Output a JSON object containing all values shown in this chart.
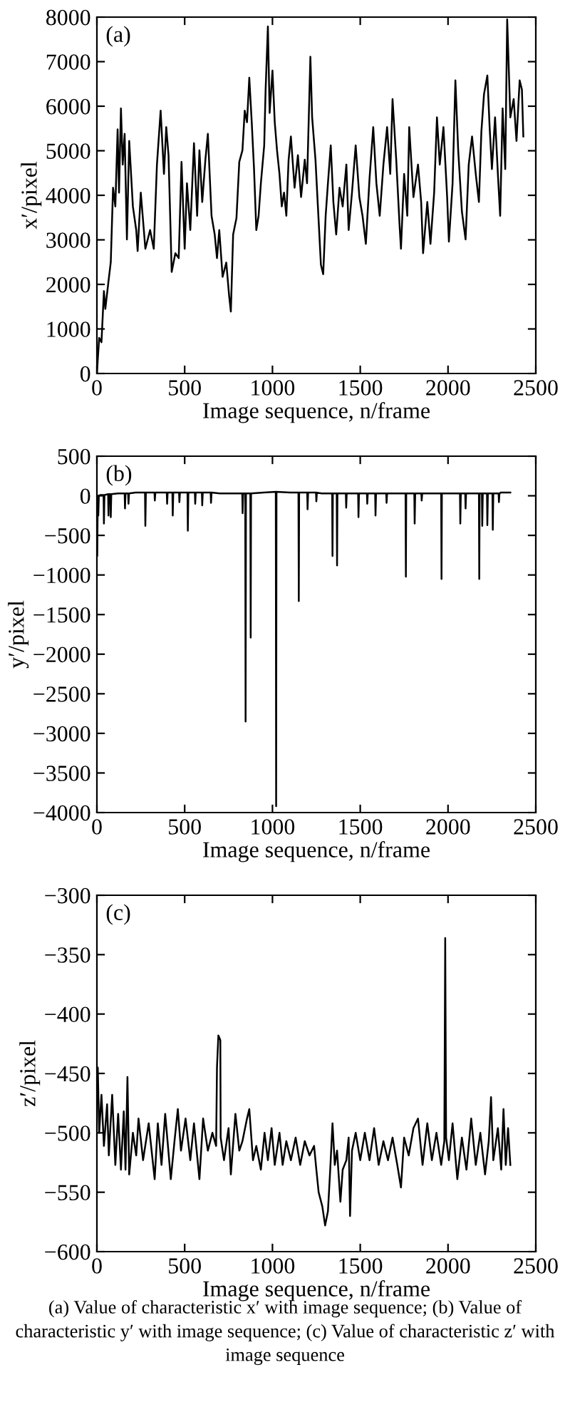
{
  "chart_data": [
    {
      "type": "line",
      "title": "(a)",
      "xlabel": "Image sequence, n/frame",
      "ylabel": "x′/pixel",
      "x": [
        0,
        13,
        26,
        40,
        48,
        66,
        79,
        92,
        105,
        118,
        126,
        137,
        147,
        158,
        171,
        184,
        205,
        224,
        232,
        250,
        276,
        303,
        324,
        342,
        363,
        382,
        395,
        408,
        426,
        447,
        466,
        482,
        500,
        513,
        532,
        553,
        571,
        584,
        600,
        618,
        632,
        653,
        671,
        684,
        697,
        716,
        737,
        753,
        763,
        776,
        795,
        811,
        829,
        842,
        855,
        868,
        882,
        895,
        908,
        921,
        934,
        953,
        961,
        974,
        984,
        1000,
        1013,
        1026,
        1040,
        1053,
        1066,
        1079,
        1092,
        1105,
        1126,
        1145,
        1163,
        1184,
        1197,
        1216,
        1226,
        1245,
        1263,
        1276,
        1289,
        1303,
        1316,
        1332,
        1347,
        1363,
        1382,
        1400,
        1421,
        1434,
        1453,
        1474,
        1495,
        1513,
        1532,
        1553,
        1574,
        1592,
        1611,
        1632,
        1653,
        1671,
        1684,
        1705,
        1724,
        1732,
        1750,
        1768,
        1779,
        1803,
        1829,
        1847,
        1858,
        1882,
        1900,
        1921,
        1937,
        1953,
        1974,
        1995,
        2005,
        2026,
        2042,
        2058,
        2079,
        2100,
        2118,
        2137,
        2158,
        2176,
        2190,
        2205,
        2224,
        2237,
        2250,
        2268,
        2284,
        2297,
        2311,
        2326,
        2337,
        2355,
        2374,
        2390,
        2408,
        2421,
        2429
      ],
      "series": [
        {
          "color": "#000000",
          "values": [
            0,
            800,
            700,
            1850,
            1450,
            2070,
            2500,
            4170,
            3750,
            5480,
            4060,
            5950,
            4690,
            5380,
            3010,
            5220,
            3750,
            3220,
            2750,
            4060,
            2800,
            3220,
            2800,
            4690,
            5900,
            4480,
            5530,
            4900,
            2280,
            2700,
            2590,
            4750,
            2800,
            4270,
            3220,
            5170,
            3540,
            5010,
            3850,
            4800,
            5380,
            3540,
            3120,
            2590,
            3220,
            2170,
            2490,
            1750,
            1390,
            3120,
            3490,
            4750,
            5010,
            5900,
            5640,
            6640,
            5640,
            4590,
            3220,
            3540,
            4270,
            5120,
            6370,
            7790,
            5850,
            6800,
            5640,
            5010,
            4480,
            3750,
            4060,
            3540,
            4800,
            5320,
            4170,
            4900,
            3960,
            4800,
            4270,
            7110,
            5750,
            4800,
            3430,
            2440,
            2230,
            3540,
            4270,
            5120,
            3850,
            3120,
            4170,
            3750,
            4690,
            3220,
            4060,
            5120,
            3960,
            3540,
            2910,
            4380,
            5530,
            4270,
            3540,
            4690,
            5530,
            4480,
            6160,
            4800,
            3330,
            2800,
            4480,
            3540,
            5530,
            3960,
            4690,
            3850,
            2700,
            3850,
            2910,
            4060,
            5750,
            4690,
            5530,
            3960,
            2960,
            4270,
            6580,
            5010,
            3640,
            3010,
            4690,
            5320,
            4480,
            3850,
            5430,
            6270,
            6690,
            5530,
            4590,
            5750,
            4480,
            3540,
            5950,
            4590,
            7950,
            5750,
            6160,
            5220,
            6580,
            6370,
            5320
          ]
        }
      ],
      "xlim": [
        0,
        2500
      ],
      "xticks": [
        0,
        500,
        1000,
        1500,
        2000,
        2500
      ],
      "ylim": [
        0,
        8000
      ],
      "yticks": [
        0,
        1000,
        2000,
        3000,
        4000,
        5000,
        6000,
        7000,
        8000
      ]
    },
    {
      "type": "line",
      "title": "(b)",
      "xlabel": "Image sequence, n/frame",
      "ylabel": "y′/pixel",
      "x": [
        0,
        2,
        5,
        8,
        11,
        20,
        38,
        40,
        43,
        64,
        66,
        69,
        77,
        79,
        82,
        120,
        158,
        160,
        163,
        178,
        180,
        183,
        220,
        274,
        276,
        279,
        328,
        330,
        333,
        398,
        400,
        403,
        430,
        432,
        435,
        468,
        470,
        473,
        516,
        518,
        521,
        558,
        560,
        563,
        598,
        600,
        603,
        648,
        650,
        653,
        700,
        760,
        828,
        830,
        833,
        845,
        847,
        849,
        874,
        876,
        878,
        950,
        1019,
        1021,
        1023,
        1100,
        1148,
        1150,
        1152,
        1198,
        1200,
        1203,
        1248,
        1250,
        1253,
        1280,
        1340,
        1342,
        1344,
        1366,
        1368,
        1370,
        1418,
        1420,
        1423,
        1488,
        1490,
        1493,
        1538,
        1540,
        1543,
        1585,
        1587,
        1590,
        1648,
        1650,
        1653,
        1680,
        1758,
        1760,
        1762,
        1808,
        1810,
        1813,
        1848,
        1850,
        1853,
        1900,
        1961,
        1963,
        1965,
        2020,
        2068,
        2070,
        2073,
        2098,
        2100,
        2103,
        2120,
        2176,
        2178,
        2180,
        2193,
        2195,
        2198,
        2222,
        2224,
        2227,
        2253,
        2255,
        2258,
        2288,
        2290,
        2293,
        2300,
        2355
      ],
      "series": [
        {
          "color": "#000000",
          "values": [
            0,
            -760,
            -20,
            -250,
            0,
            10,
            10,
            -350,
            10,
            20,
            -250,
            20,
            20,
            -270,
            20,
            30,
            30,
            -160,
            30,
            30,
            -100,
            30,
            40,
            40,
            -380,
            40,
            40,
            -60,
            40,
            40,
            -100,
            40,
            40,
            -250,
            40,
            40,
            -80,
            40,
            40,
            -440,
            40,
            40,
            -100,
            40,
            40,
            -120,
            40,
            40,
            -90,
            40,
            30,
            30,
            30,
            -220,
            30,
            30,
            -2850,
            30,
            30,
            -1790,
            30,
            40,
            50,
            -3920,
            50,
            40,
            40,
            -1330,
            40,
            40,
            -170,
            40,
            40,
            -70,
            40,
            30,
            30,
            -760,
            30,
            30,
            -880,
            30,
            30,
            -150,
            30,
            30,
            -270,
            30,
            30,
            -100,
            30,
            30,
            -250,
            30,
            30,
            -90,
            30,
            30,
            30,
            -1020,
            30,
            30,
            -350,
            30,
            30,
            -60,
            30,
            30,
            30,
            -1050,
            30,
            30,
            30,
            -350,
            30,
            30,
            -160,
            30,
            30,
            30,
            -1050,
            30,
            30,
            -380,
            30,
            30,
            -370,
            30,
            30,
            -430,
            30,
            30,
            -80,
            30,
            40,
            40
          ]
        }
      ],
      "xlim": [
        0,
        2500
      ],
      "xticks": [
        0,
        500,
        1000,
        1500,
        2000,
        2500
      ],
      "ylim": [
        -4000,
        500
      ],
      "yticks": [
        -4000,
        -3500,
        -3000,
        -2500,
        -2000,
        -1500,
        -1000,
        -500,
        0,
        500
      ]
    },
    {
      "type": "line",
      "title": "(c)",
      "xlabel": "Image sequence, n/frame",
      "ylabel": "z′/pixel",
      "x": [
        0,
        5,
        13,
        26,
        40,
        58,
        68,
        87,
        105,
        121,
        137,
        153,
        163,
        174,
        184,
        205,
        224,
        237,
        263,
        295,
        329,
        347,
        368,
        389,
        421,
        442,
        461,
        479,
        505,
        532,
        553,
        584,
        605,
        632,
        658,
        679,
        684,
        692,
        703,
        705,
        724,
        750,
        763,
        789,
        811,
        829,
        855,
        868,
        889,
        908,
        934,
        955,
        974,
        995,
        1013,
        1040,
        1058,
        1079,
        1105,
        1132,
        1158,
        1184,
        1211,
        1237,
        1250,
        1263,
        1284,
        1300,
        1316,
        1329,
        1342,
        1355,
        1368,
        1387,
        1400,
        1421,
        1434,
        1442,
        1453,
        1474,
        1500,
        1526,
        1553,
        1579,
        1605,
        1632,
        1658,
        1684,
        1711,
        1732,
        1750,
        1776,
        1803,
        1829,
        1855,
        1882,
        1908,
        1934,
        1961,
        1979,
        1984,
        1989,
        2005,
        2026,
        2053,
        2079,
        2105,
        2132,
        2158,
        2184,
        2211,
        2232,
        2245,
        2258,
        2284,
        2303,
        2316,
        2329,
        2342,
        2355
      ],
      "series": [
        {
          "color": "#000000",
          "values": [
            -455,
            -445,
            -500,
            -468,
            -511,
            -476,
            -519,
            -468,
            -527,
            -484,
            -531,
            -482,
            -531,
            -453,
            -535,
            -500,
            -519,
            -488,
            -523,
            -492,
            -539,
            -492,
            -527,
            -484,
            -539,
            -507,
            -480,
            -515,
            -488,
            -523,
            -492,
            -539,
            -488,
            -515,
            -500,
            -511,
            -445,
            -418,
            -422,
            -504,
            -523,
            -496,
            -535,
            -484,
            -515,
            -507,
            -488,
            -480,
            -523,
            -511,
            -531,
            -500,
            -523,
            -496,
            -527,
            -500,
            -527,
            -507,
            -523,
            -504,
            -527,
            -507,
            -519,
            -511,
            -531,
            -550,
            -562,
            -578,
            -566,
            -531,
            -492,
            -527,
            -515,
            -558,
            -531,
            -523,
            -504,
            -570,
            -515,
            -500,
            -523,
            -500,
            -523,
            -496,
            -527,
            -507,
            -523,
            -504,
            -527,
            -546,
            -504,
            -519,
            -496,
            -488,
            -527,
            -492,
            -523,
            -500,
            -527,
            -507,
            -336,
            -504,
            -523,
            -492,
            -539,
            -504,
            -531,
            -488,
            -527,
            -500,
            -535,
            -507,
            -470,
            -523,
            -496,
            -531,
            -480,
            -527,
            -496,
            -527
          ]
        }
      ],
      "xlim": [
        0,
        2500
      ],
      "xticks": [
        0,
        500,
        1000,
        1500,
        2000,
        2500
      ],
      "ylim": [
        -600,
        -300
      ],
      "yticks": [
        -600,
        -550,
        -500,
        -450,
        -400,
        -350,
        -300
      ],
      "annotations": [
        "(a) Value of characteristic x′ with image sequence; (b) Value of characteristic y′ with image sequence; (c) Value of characteristic z′ with image sequence"
      ]
    }
  ]
}
